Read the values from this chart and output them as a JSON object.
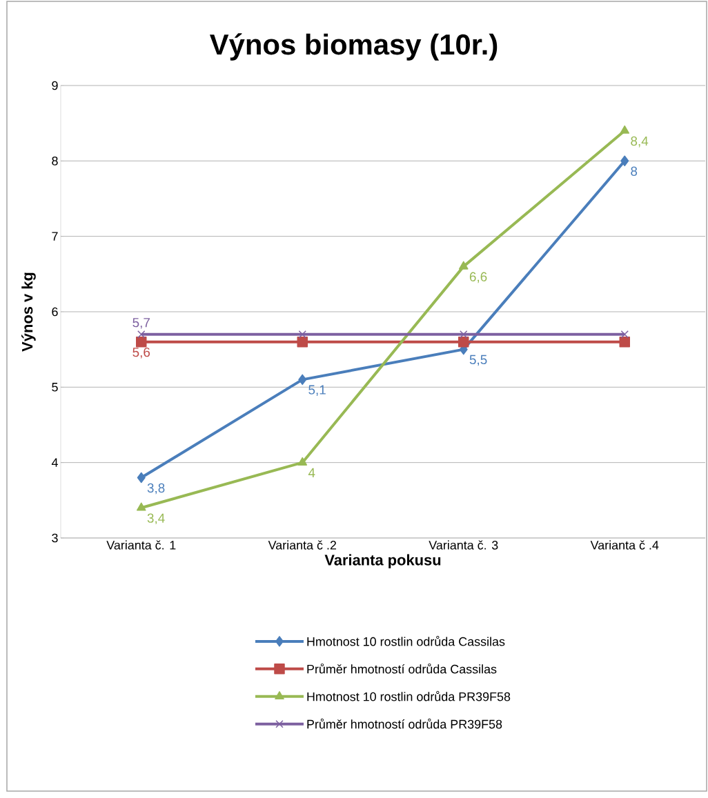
{
  "chart_data": {
    "type": "line",
    "title": "Výnos biomasy (10r.)",
    "xlabel": "Varianta pokusu",
    "ylabel": "Výnos v kg",
    "categories": [
      "Varianta č. 1",
      "Varianta č .2",
      "Varianta č. 3",
      "Varianta č .4"
    ],
    "series": [
      {
        "name": "Hmotnost 10 rostlin odrůda Cassilas",
        "color": "#4a7ebb",
        "marker": "diamond",
        "values": [
          3.8,
          5.1,
          5.5,
          8
        ],
        "value_labels": [
          "3,8",
          "5,1",
          "5,5",
          "8"
        ]
      },
      {
        "name": "Průměr hmotností odrůda Cassilas",
        "color": "#be4b48",
        "marker": "square",
        "values": [
          5.6,
          5.6,
          5.6,
          5.6
        ],
        "value_labels": [
          "5,6",
          null,
          null,
          null
        ]
      },
      {
        "name": "Hmotnost 10 rostlin odrůda PR39F58",
        "color": "#98b954",
        "marker": "triangle",
        "values": [
          3.4,
          4,
          6.6,
          8.4
        ],
        "value_labels": [
          "3,4",
          "4",
          "6,6",
          "8,4"
        ]
      },
      {
        "name": "Průměr hmotností odrůda PR39F58",
        "color": "#7d60a0",
        "marker": "cross",
        "values": [
          5.7,
          5.7,
          5.7,
          5.7
        ],
        "value_labels": [
          "5,7",
          null,
          null,
          null
        ]
      }
    ],
    "ylim": [
      3,
      9
    ],
    "yticks": [
      3,
      4,
      5,
      6,
      7,
      8,
      9
    ],
    "grid": "y",
    "legend": "bottom",
    "line_style": "solid"
  }
}
